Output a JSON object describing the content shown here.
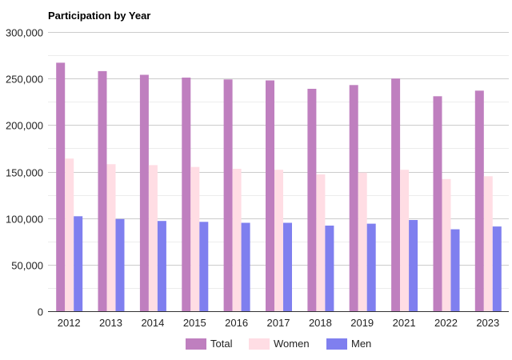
{
  "chart_data": {
    "type": "bar",
    "title": "Participation by Year",
    "xlabel": "",
    "ylabel": "",
    "categories": [
      "2012",
      "2013",
      "2014",
      "2015",
      "2016",
      "2017",
      "2018",
      "2019",
      "2021",
      "2022",
      "2023"
    ],
    "series": [
      {
        "name": "Total",
        "color": "#bf7fbf",
        "values": [
          267000,
          258000,
          254000,
          251000,
          249000,
          248000,
          239000,
          243000,
          250000,
          231000,
          237000
        ]
      },
      {
        "name": "Women",
        "color": "#ffdde4",
        "values": [
          164000,
          158000,
          157000,
          155000,
          153000,
          152000,
          147000,
          149000,
          152000,
          142000,
          145000
        ]
      },
      {
        "name": "Men",
        "color": "#7f7fef",
        "values": [
          102000,
          99000,
          97000,
          96000,
          95000,
          95000,
          92000,
          94000,
          98000,
          88000,
          91000
        ]
      }
    ],
    "ylim": [
      0,
      300000
    ],
    "yticks": [
      "0",
      "50,000",
      "100,000",
      "150,000",
      "200,000",
      "250,000",
      "300,000"
    ],
    "yticks_values": [
      0,
      50000,
      100000,
      150000,
      200000,
      250000,
      300000
    ],
    "grid": true,
    "legend_position": "bottom"
  }
}
